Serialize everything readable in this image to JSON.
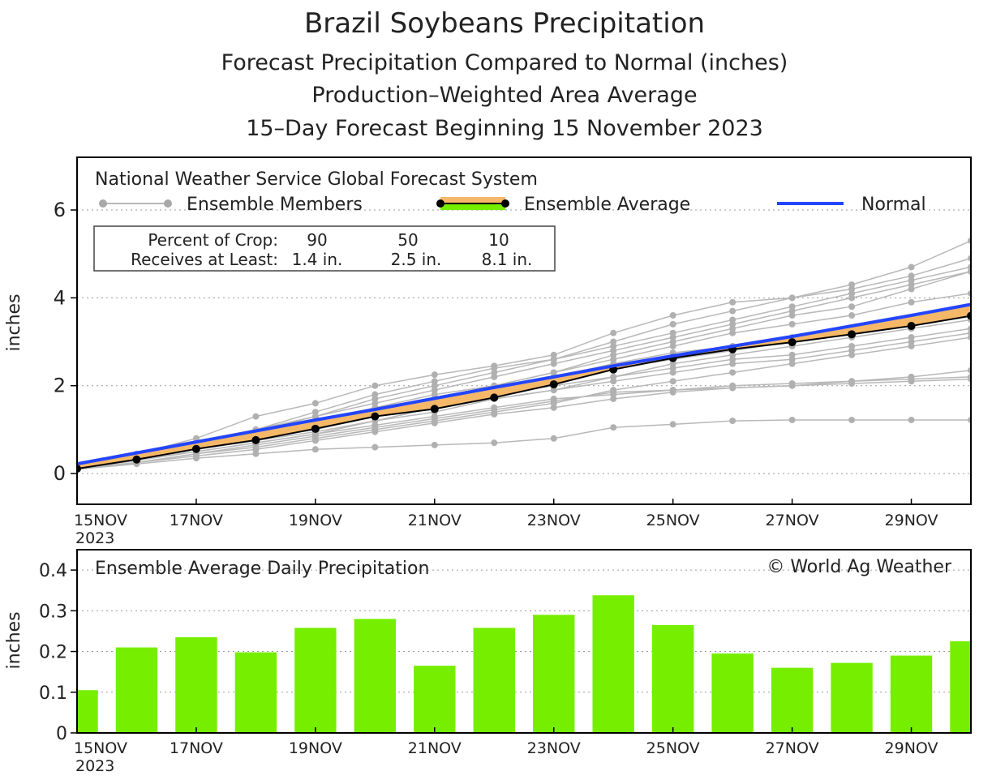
{
  "header": {
    "title": "Brazil Soybeans Precipitation",
    "subtitle1": "Forecast Precipitation Compared to Normal (inches)",
    "subtitle2": "Production–Weighted Area Average",
    "subtitle3": "15–Day Forecast Beginning 15 November 2023"
  },
  "legend": {
    "source": "National Weather Service Global Forecast System",
    "members_label": "Ensemble Members",
    "average_label": "Ensemble Average",
    "normal_label": "Normal"
  },
  "crop_table": {
    "row1_label": "Percent of Crop:",
    "row2_label": "Receives at Least:",
    "percents": [
      "90",
      "50",
      "10"
    ],
    "amounts": [
      "1.4 in.",
      "2.5 in.",
      "8.1 in."
    ]
  },
  "colors": {
    "member": "#b8b8b8",
    "normal": "#2345ff",
    "band_above": "#f5b868",
    "band_below": "#76ee00",
    "bar": "#76ee00",
    "average": "#000000"
  },
  "chart_data": [
    {
      "type": "line",
      "title": "Brazil Soybeans Precipitation",
      "ylabel": "inches",
      "xlabel": "",
      "ylim": [
        -0.7,
        7.2
      ],
      "xlim": [
        0,
        15
      ],
      "yticks": [
        0,
        2,
        4,
        6
      ],
      "ytick_labels": [
        "0",
        "2",
        "4",
        "6"
      ],
      "grid": "dotted horizontal",
      "x_tick_positions": [
        0,
        2,
        4,
        6,
        8,
        10,
        12,
        14
      ],
      "x_tick_labels": [
        "15NOV",
        "17NOV",
        "19NOV",
        "21NOV",
        "23NOV",
        "25NOV",
        "27NOV",
        "29NOV"
      ],
      "x_year_label": "2023",
      "x": [
        0,
        1,
        2,
        3,
        4,
        5,
        6,
        7,
        8,
        9,
        10,
        11,
        12,
        13,
        14,
        15
      ],
      "series": [
        {
          "name": "Normal",
          "values": [
            0.22,
            0.47,
            0.72,
            0.97,
            1.22,
            1.46,
            1.71,
            1.96,
            2.2,
            2.45,
            2.68,
            2.9,
            3.12,
            3.36,
            3.6,
            3.85
          ]
        },
        {
          "name": "Ensemble Average",
          "values": [
            0.11,
            0.32,
            0.56,
            0.76,
            1.02,
            1.3,
            1.47,
            1.73,
            2.03,
            2.37,
            2.63,
            2.83,
            2.99,
            3.17,
            3.36,
            3.59
          ]
        },
        {
          "name": "Ensemble Members",
          "values": [
            [
              0.1,
              0.25,
              0.45,
              0.6,
              0.8,
              1.0,
              1.2,
              1.4,
              1.6,
              1.9,
              2.1,
              2.3,
              2.5,
              2.7,
              2.9,
              3.1
            ],
            [
              0.12,
              0.4,
              0.7,
              0.95,
              1.3,
              1.7,
              2.0,
              2.3,
              2.6,
              3.0,
              3.4,
              3.7,
              4.0,
              4.2,
              4.5,
              4.9
            ],
            [
              0.1,
              0.3,
              0.6,
              0.8,
              1.1,
              1.4,
              1.7,
              2.0,
              2.3,
              2.7,
              3.0,
              3.3,
              3.6,
              3.8,
              4.2,
              4.6
            ],
            [
              0.1,
              0.22,
              0.35,
              0.45,
              0.55,
              0.6,
              0.65,
              0.7,
              0.8,
              1.05,
              1.12,
              1.2,
              1.22,
              1.22,
              1.22,
              1.22
            ],
            [
              0.12,
              0.45,
              0.8,
              1.3,
              1.6,
              2.0,
              2.25,
              2.45,
              2.7,
              3.2,
              3.6,
              3.9,
              4.0,
              4.3,
              4.7,
              5.3
            ],
            [
              0.1,
              0.3,
              0.55,
              0.75,
              0.95,
              1.2,
              1.5,
              1.7,
              1.9,
              2.1,
              2.3,
              2.5,
              2.6,
              2.8,
              3.0,
              3.2
            ],
            [
              0.1,
              0.35,
              0.6,
              0.8,
              1.1,
              1.4,
              1.6,
              1.8,
              2.0,
              2.2,
              2.4,
              2.6,
              2.7,
              2.9,
              3.1,
              3.3
            ],
            [
              0.12,
              0.3,
              0.5,
              0.7,
              0.9,
              1.1,
              1.3,
              1.5,
              1.7,
              1.8,
              1.9,
              2.0,
              2.05,
              2.1,
              2.15,
              2.2
            ],
            [
              0.1,
              0.4,
              0.7,
              1.0,
              1.3,
              1.6,
              1.9,
              2.2,
              2.5,
              2.8,
              3.1,
              3.4,
              3.7,
              4.0,
              4.3,
              4.6
            ],
            [
              0.1,
              0.25,
              0.45,
              0.65,
              0.85,
              1.05,
              1.25,
              1.45,
              1.65,
              1.85,
              1.9,
              1.95,
              2.0,
              2.1,
              2.2,
              2.35
            ],
            [
              0.12,
              0.35,
              0.6,
              0.9,
              1.2,
              1.5,
              1.8,
              2.0,
              2.3,
              2.6,
              2.9,
              3.2,
              3.4,
              3.6,
              3.9,
              4.1
            ],
            [
              0.1,
              0.3,
              0.5,
              0.7,
              0.9,
              1.2,
              1.4,
              1.7,
              1.9,
              2.2,
              2.5,
              2.7,
              2.9,
              3.1,
              3.3,
              3.5
            ],
            [
              0.1,
              0.3,
              0.55,
              0.8,
              1.0,
              1.3,
              1.6,
              1.9,
              2.1,
              2.4,
              2.6,
              2.8,
              3.0,
              3.2,
              3.4,
              3.7
            ],
            [
              0.12,
              0.35,
              0.65,
              0.85,
              1.15,
              1.4,
              1.6,
              1.85,
              2.2,
              2.5,
              2.75,
              2.9,
              3.1,
              3.3,
              3.5,
              3.8
            ],
            [
              0.1,
              0.25,
              0.4,
              0.55,
              0.75,
              0.95,
              1.15,
              1.35,
              1.5,
              1.7,
              1.85,
              1.95,
              2.0,
              2.05,
              2.1,
              2.15
            ],
            [
              0.1,
              0.35,
              0.7,
              1.0,
              1.4,
              1.8,
              2.1,
              2.4,
              2.6,
              2.9,
              3.2,
              3.5,
              3.8,
              4.1,
              4.4,
              4.7
            ]
          ]
        }
      ]
    },
    {
      "type": "bar",
      "title": "Ensemble Average Daily Precipitation",
      "ylabel": "inches",
      "xlabel": "",
      "ylim": [
        0,
        0.45
      ],
      "yticks": [
        0,
        0.1,
        0.2,
        0.3,
        0.4
      ],
      "ytick_labels": [
        "0",
        "0.1",
        "0.2",
        "0.3",
        "0.4"
      ],
      "grid": "dotted horizontal",
      "x_tick_positions": [
        0,
        2,
        4,
        6,
        8,
        10,
        12,
        14
      ],
      "x_tick_labels": [
        "15NOV",
        "17NOV",
        "19NOV",
        "21NOV",
        "23NOV",
        "25NOV",
        "27NOV",
        "29NOV"
      ],
      "x_year_label": "2023",
      "x": [
        0,
        1,
        2,
        3,
        4,
        5,
        6,
        7,
        8,
        9,
        10,
        11,
        12,
        13,
        14,
        15
      ],
      "values": [
        0.105,
        0.21,
        0.235,
        0.198,
        0.258,
        0.28,
        0.165,
        0.258,
        0.29,
        0.338,
        0.265,
        0.195,
        0.16,
        0.172,
        0.19,
        0.225
      ],
      "annotation": "© World Ag Weather"
    }
  ]
}
